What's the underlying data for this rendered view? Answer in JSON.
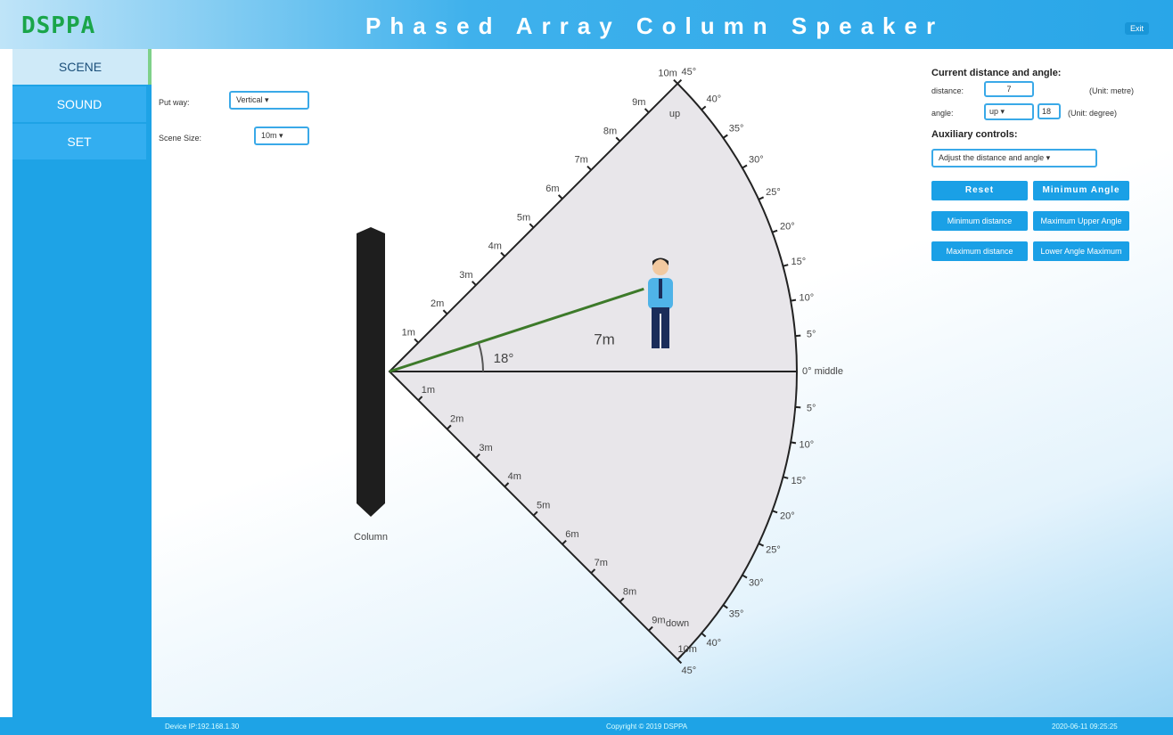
{
  "header": {
    "logo": "DSPPA",
    "title": "Phased Array Column Speaker",
    "exit": "Exit"
  },
  "nav": [
    "SCENE",
    "SOUND",
    "SET"
  ],
  "controls": {
    "put_away_label": "Put way:",
    "put_away_value": "Vertical",
    "scene_size_label": "Scene Size:",
    "scene_size_value": "10m"
  },
  "scene": {
    "column_label": "Column",
    "up_label": "up",
    "down_label": "down",
    "middle_label": "0° middle",
    "distance_labels": [
      "1m",
      "2m",
      "3m",
      "4m",
      "5m",
      "6m",
      "7m",
      "8m",
      "9m",
      "10m"
    ],
    "angle_labels": [
      "5°",
      "10°",
      "15°",
      "20°",
      "25°",
      "30°",
      "35°",
      "40°",
      "45°"
    ],
    "distance_value_label": "7m",
    "angle_value_label": "18°"
  },
  "panel": {
    "current_title": "Current distance and angle:",
    "distance_label": "distance:",
    "distance_value": "7",
    "distance_unit": "(Unit: metre)",
    "angle_label": "angle:",
    "angle_direction": "up",
    "angle_value": "18",
    "angle_unit": "(Unit: degree)",
    "aux_title": "Auxiliary controls:",
    "aux_select": "Adjust the distance and angle",
    "buttons": [
      "Reset",
      "Minimum Angle",
      "Minimum distance",
      "Maximum Upper Angle",
      "Maximum distance",
      "Lower Angle Maximum"
    ]
  },
  "footer": {
    "device_ip": "Device IP:192.168.1.30",
    "copyright": "Copyright © 2019 DSPPA",
    "datetime": "2020-06-11 09:25:25"
  }
}
